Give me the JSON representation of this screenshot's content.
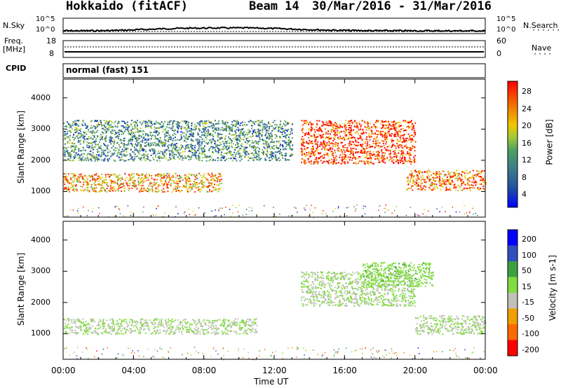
{
  "header": {
    "station": "Hokkaido (fitACF)",
    "beam": "Beam 14",
    "date_range": "30/Mar/2016 - 31/Mar/2016"
  },
  "status_panels": {
    "nsky_label": "N.Sky",
    "nsearch_label": "N.Search",
    "nsky_ticks": [
      "10^5",
      "10^0"
    ],
    "nsky_right_ticks": [
      "10^5",
      "10^0"
    ],
    "freq_label": "Freq.",
    "freq_unit": "[MHz]",
    "freq_ticks": [
      "18",
      "8"
    ],
    "nave_label": "Nave",
    "nave_ticks": [
      "60",
      "0"
    ],
    "cpid_label": "CPID",
    "cpid_text": "normal (fast) 151"
  },
  "power_panel": {
    "ylabel": "Slant Range [km]",
    "cbar_label": "Power [dB]",
    "cbar_ticks": [
      "28",
      "24",
      "20",
      "16",
      "12",
      "8",
      "4"
    ]
  },
  "velocity_panel": {
    "ylabel": "Slant Range [km]",
    "cbar_label": "Velocity [m s-1]",
    "cbar_ticks": [
      "200",
      "100",
      "50",
      "15",
      "-15",
      "-50",
      "-100",
      "-200"
    ]
  },
  "xaxis": {
    "label": "Time UT",
    "ticks": [
      "00:00",
      "04:00",
      "08:00",
      "12:00",
      "16:00",
      "20:00",
      "00:00"
    ]
  },
  "colors": {
    "power_scale": [
      "#0000ff",
      "#2050a0",
      "#3c7a8c",
      "#4aa060",
      "#9cc83a",
      "#f0c800",
      "#f07800",
      "#ff2800",
      "#ff0000"
    ],
    "velocity_scale": [
      "#ff0000",
      "#ff6a00",
      "#f0a000",
      "#c0c0b8",
      "#80dc40",
      "#3ca040",
      "#3050c0",
      "#0000ff"
    ]
  },
  "chart_data": [
    {
      "type": "heatmap",
      "title": "Power",
      "x": [
        "00:00",
        "04:00",
        "08:00",
        "12:00",
        "16:00",
        "20:00",
        "00:00"
      ],
      "xlabel": "Time UT",
      "ylabel": "Slant Range [km]",
      "xlim_hours": [
        0,
        24
      ],
      "ylim": [
        180,
        4600
      ],
      "yticks": [
        1000,
        2000,
        3000,
        4000
      ],
      "colorbar": {
        "label": "Power [dB]",
        "range": [
          0,
          30
        ],
        "ticks": [
          4,
          8,
          12,
          16,
          20,
          24,
          28
        ]
      },
      "echo_regions": [
        {
          "start_h": 0.0,
          "end_h": 9.0,
          "range_km": [
            1000,
            1600
          ],
          "power_db": 20
        },
        {
          "start_h": 0.0,
          "end_h": 13.0,
          "range_km": [
            2000,
            3300
          ],
          "power_db": 10
        },
        {
          "start_h": 13.5,
          "end_h": 20.0,
          "range_km": [
            1900,
            3300
          ],
          "power_db": 25
        },
        {
          "start_h": 19.5,
          "end_h": 24.0,
          "range_km": [
            1050,
            1700
          ],
          "power_db": 22
        }
      ]
    },
    {
      "type": "heatmap",
      "title": "Velocity",
      "x": [
        "00:00",
        "04:00",
        "08:00",
        "12:00",
        "16:00",
        "20:00",
        "00:00"
      ],
      "xlabel": "Time UT",
      "ylabel": "Slant Range [km]",
      "xlim_hours": [
        0,
        24
      ],
      "ylim": [
        180,
        4600
      ],
      "yticks": [
        1000,
        2000,
        3000,
        4000
      ],
      "colorbar": {
        "label": "Velocity [m s-1]",
        "range": [
          -250,
          250
        ],
        "ticks": [
          200,
          100,
          50,
          15,
          -15,
          -50,
          -100,
          -200
        ]
      },
      "echo_regions": [
        {
          "start_h": 0.0,
          "end_h": 11.0,
          "range_km": [
            1000,
            1500
          ],
          "velocity": 0
        },
        {
          "start_h": 13.5,
          "end_h": 20.0,
          "range_km": [
            1900,
            3000
          ],
          "velocity": 0
        },
        {
          "start_h": 17.0,
          "end_h": 21.0,
          "range_km": [
            2500,
            3300
          ],
          "velocity": 40
        },
        {
          "start_h": 20.0,
          "end_h": 24.0,
          "range_km": [
            1000,
            1600
          ],
          "velocity": 0
        }
      ]
    }
  ]
}
